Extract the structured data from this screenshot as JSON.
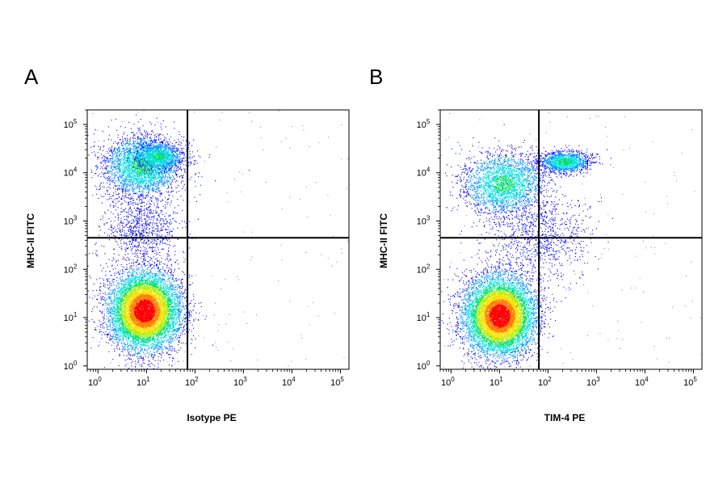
{
  "chart_data": [
    {
      "type": "scatter",
      "subtype": "flow-cytometry-density-plot",
      "panel_label": "A",
      "xlabel": "Isotype PE",
      "ylabel": "MHC-II FITC",
      "x_scale": "log",
      "y_scale": "log",
      "xlim": [
        0.6,
        150000
      ],
      "ylim": [
        0.85,
        200000
      ],
      "x_ticks": [
        {
          "base": "10",
          "exp": "0"
        },
        {
          "base": "10",
          "exp": "1"
        },
        {
          "base": "10",
          "exp": "2"
        },
        {
          "base": "10",
          "exp": "3"
        },
        {
          "base": "10",
          "exp": "4"
        },
        {
          "base": "10",
          "exp": "5"
        }
      ],
      "y_ticks": [
        {
          "base": "10",
          "exp": "0"
        },
        {
          "base": "10",
          "exp": "1"
        },
        {
          "base": "10",
          "exp": "2"
        },
        {
          "base": "10",
          "exp": "3"
        },
        {
          "base": "10",
          "exp": "4"
        },
        {
          "base": "10",
          "exp": "5"
        }
      ],
      "quadrant_gate": {
        "x": 70,
        "y": 450
      },
      "populations": [
        {
          "center_x": 9,
          "center_y": 14,
          "spread_x": 0.36,
          "spread_y": 0.4,
          "count": 9000,
          "density": "high"
        },
        {
          "center_x": 8,
          "center_y": 14000,
          "spread_x": 0.4,
          "spread_y": 0.32,
          "count": 3200,
          "density": "medium"
        },
        {
          "center_x": 18,
          "center_y": 22000,
          "spread_x": 0.25,
          "spread_y": 0.14,
          "count": 1200,
          "density": "medium"
        },
        {
          "center_x": 8,
          "center_y": 700,
          "spread_x": 0.4,
          "spread_y": 0.35,
          "count": 900,
          "density": "low"
        }
      ],
      "density_colors": [
        "#0000ff",
        "#0090ff",
        "#00e0e0",
        "#00e070",
        "#b0f000",
        "#ffe000",
        "#ff8000",
        "#ff0000"
      ]
    },
    {
      "type": "scatter",
      "subtype": "flow-cytometry-density-plot",
      "panel_label": "B",
      "xlabel": "TIM-4 PE",
      "ylabel": "MHC-II FITC",
      "x_scale": "log",
      "y_scale": "log",
      "xlim": [
        0.6,
        150000
      ],
      "ylim": [
        0.85,
        200000
      ],
      "x_ticks": [
        {
          "base": "10",
          "exp": "0"
        },
        {
          "base": "10",
          "exp": "1"
        },
        {
          "base": "10",
          "exp": "2"
        },
        {
          "base": "10",
          "exp": "3"
        },
        {
          "base": "10",
          "exp": "4"
        },
        {
          "base": "10",
          "exp": "5"
        }
      ],
      "y_ticks": [
        {
          "base": "10",
          "exp": "0"
        },
        {
          "base": "10",
          "exp": "1"
        },
        {
          "base": "10",
          "exp": "2"
        },
        {
          "base": "10",
          "exp": "3"
        },
        {
          "base": "10",
          "exp": "4"
        },
        {
          "base": "10",
          "exp": "5"
        }
      ],
      "quadrant_gate": {
        "x": 65,
        "y": 450
      },
      "populations": [
        {
          "center_x": 10,
          "center_y": 11,
          "spread_x": 0.36,
          "spread_y": 0.4,
          "count": 9000,
          "density": "high"
        },
        {
          "center_x": 12,
          "center_y": 6000,
          "spread_x": 0.42,
          "spread_y": 0.32,
          "count": 2600,
          "density": "medium"
        },
        {
          "center_x": 220,
          "center_y": 17000,
          "spread_x": 0.25,
          "spread_y": 0.11,
          "count": 1500,
          "density": "medium"
        },
        {
          "center_x": 70,
          "center_y": 500,
          "spread_x": 0.5,
          "spread_y": 0.4,
          "count": 900,
          "density": "low"
        }
      ],
      "density_colors": [
        "#0000ff",
        "#0090ff",
        "#00e0e0",
        "#00e070",
        "#b0f000",
        "#ffe000",
        "#ff8000",
        "#ff0000"
      ]
    }
  ]
}
